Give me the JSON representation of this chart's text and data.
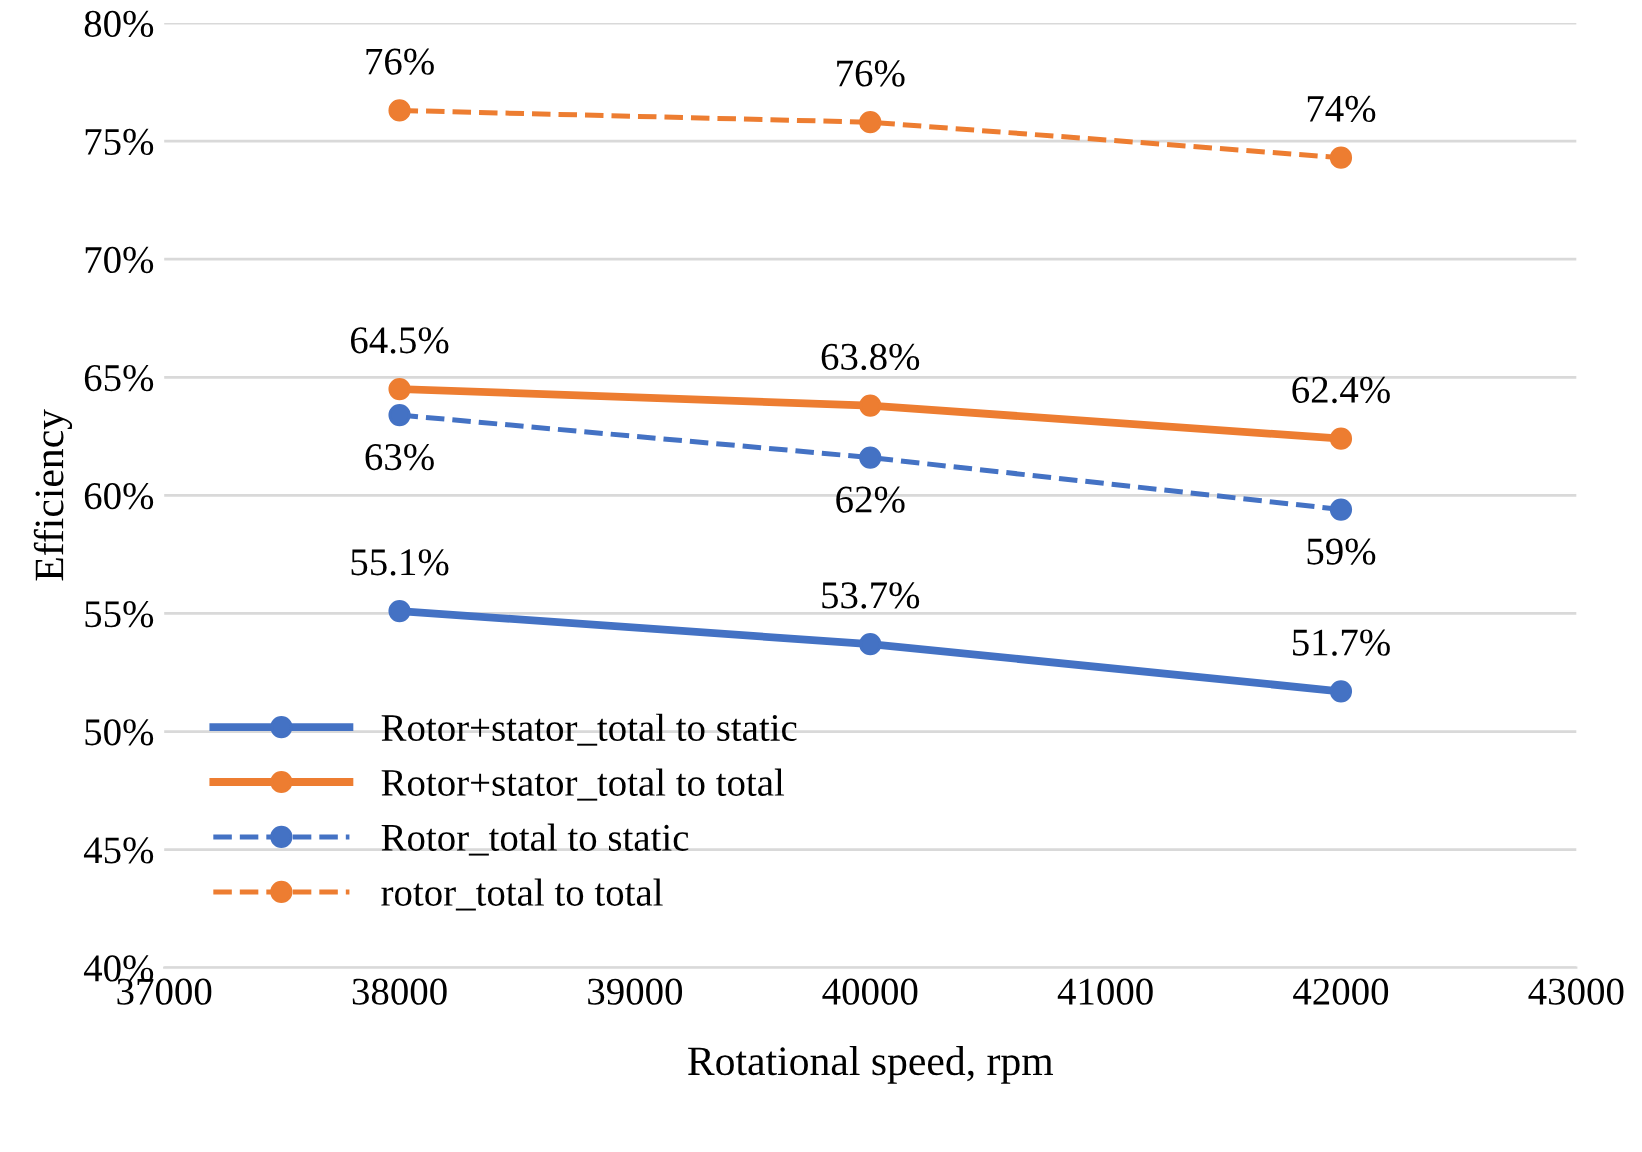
{
  "chart_data": {
    "type": "line",
    "xlabel": "Rotational speed, rpm",
    "ylabel": "Efficiency",
    "x": [
      38000,
      40000,
      42000
    ],
    "series": [
      {
        "name": "Rotor+stator_total to static",
        "color": "#4472c4",
        "line_style": "solid",
        "values": [
          55.1,
          53.7,
          51.7
        ],
        "value_labels": [
          "55.1%",
          "53.7%",
          "51.7%"
        ]
      },
      {
        "name": "Rotor+stator_total to total",
        "color": "#ed7d31",
        "line_style": "solid",
        "values": [
          64.5,
          63.8,
          62.4
        ],
        "value_labels": [
          "64.5%",
          "63.8%",
          "62.4%"
        ]
      },
      {
        "name": "Rotor_total to static",
        "color": "#4472c4",
        "line_style": "dashed",
        "values": [
          63.4,
          61.6,
          59.4
        ],
        "value_labels": [
          "63%",
          "62%",
          "59%"
        ]
      },
      {
        "name": "rotor_total to total",
        "color": "#ed7d31",
        "line_style": "dashed",
        "values": [
          76.3,
          75.8,
          74.3
        ],
        "value_labels": [
          "76%",
          "76%",
          "74%"
        ]
      }
    ],
    "xlim": [
      37000,
      43000
    ],
    "xticks": [
      37000,
      38000,
      39000,
      40000,
      41000,
      42000,
      43000
    ],
    "ylim": [
      40,
      80
    ],
    "yticks": [
      {
        "value": 40,
        "label": "40%"
      },
      {
        "value": 45,
        "label": "45%"
      },
      {
        "value": 50,
        "label": "50%"
      },
      {
        "value": 55,
        "label": "55%"
      },
      {
        "value": 60,
        "label": "60%"
      },
      {
        "value": 65,
        "label": "65%"
      },
      {
        "value": 70,
        "label": "70%"
      },
      {
        "value": 75,
        "label": "75%"
      },
      {
        "value": 80,
        "label": "80%"
      }
    ],
    "grid": "y",
    "legend": "bottom left",
    "marker": "circle"
  }
}
